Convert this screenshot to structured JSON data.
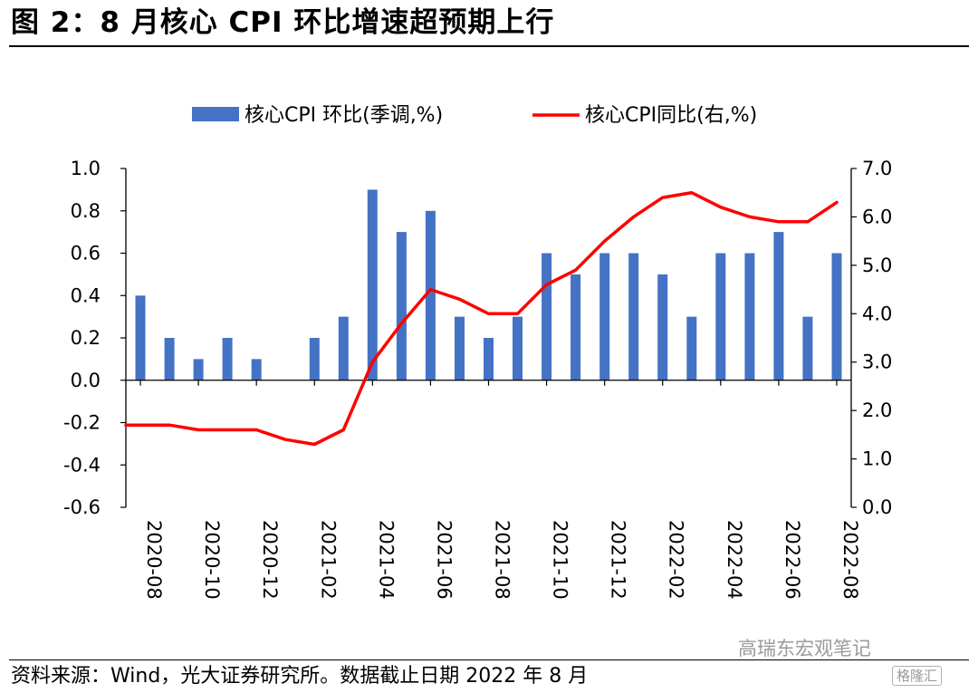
{
  "header": {
    "title": "图 2：8 月核心 CPI 环比增速超预期上行"
  },
  "footer": {
    "source": "资料来源：Wind，光大证券研究所。数据截止日期 2022 年 8 月",
    "watermark": "高瑞东宏观笔记",
    "watermark_logo": "格隆汇"
  },
  "colors": {
    "bar": "#4472C4",
    "line": "#FF0000",
    "axis": "#000000"
  },
  "chart_data": {
    "type": "bar+line",
    "title": "8 月核心 CPI 环比增速超预期上行",
    "categories": [
      "2020-08",
      "2020-09",
      "2020-10",
      "2020-11",
      "2020-12",
      "2021-01",
      "2021-02",
      "2021-03",
      "2021-04",
      "2021-05",
      "2021-06",
      "2021-07",
      "2021-08",
      "2021-09",
      "2021-10",
      "2021-11",
      "2021-12",
      "2022-01",
      "2022-02",
      "2022-03",
      "2022-04",
      "2022-05",
      "2022-06",
      "2022-07",
      "2022-08"
    ],
    "tick_labels": [
      "2020-08",
      "2020-10",
      "2020-12",
      "2021-02",
      "2021-04",
      "2021-06",
      "2021-08",
      "2021-10",
      "2021-12",
      "2022-02",
      "2022-04",
      "2022-06",
      "2022-08"
    ],
    "series": [
      {
        "name": "核心CPI 环比(季调,%)",
        "type": "bar",
        "axis": "left",
        "values": [
          0.4,
          0.2,
          0.1,
          0.2,
          0.1,
          0.0,
          0.2,
          0.3,
          0.9,
          0.7,
          0.8,
          0.3,
          0.2,
          0.3,
          0.6,
          0.5,
          0.6,
          0.6,
          0.5,
          0.3,
          0.6,
          0.6,
          0.7,
          0.3,
          0.6
        ]
      },
      {
        "name": "核心CPI同比(右,%)",
        "type": "line",
        "axis": "right",
        "values": [
          1.7,
          1.7,
          1.6,
          1.6,
          1.6,
          1.4,
          1.3,
          1.6,
          3.0,
          3.8,
          4.5,
          4.3,
          4.0,
          4.0,
          4.6,
          4.9,
          5.5,
          6.0,
          6.4,
          6.5,
          6.2,
          6.0,
          5.9,
          5.9,
          6.3
        ]
      }
    ],
    "y_left": {
      "range": [
        -0.6,
        1.0
      ],
      "ticks": [
        "1.0",
        "0.8",
        "0.6",
        "0.4",
        "0.2",
        "0.0",
        "-0.2",
        "-0.4",
        "-0.6"
      ]
    },
    "y_right": {
      "range": [
        0.0,
        7.0
      ],
      "ticks": [
        "7.0",
        "6.0",
        "5.0",
        "4.0",
        "3.0",
        "2.0",
        "1.0",
        "0.0"
      ]
    },
    "legend": "top-center",
    "grid": false
  }
}
